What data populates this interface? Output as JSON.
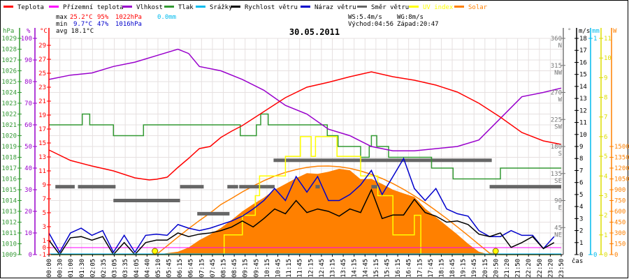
{
  "legend": [
    {
      "label": "Teplota",
      "color": "#ff0000"
    },
    {
      "label": "Přízemní teplota",
      "color": "#ff00ff"
    },
    {
      "label": "Vlhkost",
      "color": "#9900cc"
    },
    {
      "label": "Tlak",
      "color": "#339933"
    },
    {
      "label": "Srážky",
      "color": "#00bbee"
    },
    {
      "label": "Rychlost větru",
      "color": "#000000"
    },
    {
      "label": "Náraz větru",
      "color": "#0000cc"
    },
    {
      "label": "Směr větru",
      "color": "#666666"
    },
    {
      "label": "UV index",
      "color": "#ffff00"
    },
    {
      "label": "Solar",
      "color": "#ff8000"
    }
  ],
  "stats": {
    "max_label": "max",
    "max_temp": "25.2°C",
    "max_hum": "95%",
    "max_press": "1022hPa",
    "rain": "0.0mm",
    "min_label": "min",
    "min_temp": "9.7°C",
    "min_hum": "47%",
    "min_press": "1016hPa",
    "avg": "avg 18.1°C",
    "ws": "WS:5.4m/s",
    "wg": "WG:8m/s",
    "sunrise": "Východ:04:56",
    "sunset": "Západ:20:47"
  },
  "chart_data": {
    "type": "line",
    "title": "30.05.2011",
    "xlabel": "čas",
    "x_ticks": [
      "00:00",
      "00:30",
      "01:00",
      "01:30",
      "02:05",
      "02:35",
      "03:05",
      "03:35",
      "04:05",
      "04:40",
      "05:10",
      "05:45",
      "06:15",
      "06:45",
      "07:15",
      "07:45",
      "08:15",
      "08:45",
      "09:15",
      "09:45",
      "10:15",
      "10:45",
      "11:15",
      "11:45",
      "12:15",
      "12:45",
      "13:15",
      "13:45",
      "14:15",
      "14:45",
      "15:15",
      "15:45",
      "16:15",
      "16:45",
      "17:15",
      "17:45",
      "18:15",
      "18:45",
      "19:15",
      "19:45",
      "20:15",
      "20:50",
      "21:20",
      "21:50",
      "22:20",
      "22:50",
      "23:20",
      "23:50"
    ],
    "axes": {
      "pressure": {
        "unit": "hPa",
        "range": [
          1009,
          1029
        ],
        "ticks": [
          1009,
          1010,
          1011,
          1012,
          1013,
          1014,
          1015,
          1016,
          1017,
          1018,
          1019,
          1020,
          1021,
          1022,
          1023,
          1024,
          1025,
          1026,
          1027,
          1028,
          1029
        ]
      },
      "humidity": {
        "unit": "%",
        "range": [
          0,
          100
        ],
        "ticks": [
          0,
          10,
          20,
          30,
          40,
          50,
          60,
          70,
          80,
          90,
          100
        ]
      },
      "temperature": {
        "unit": "°C",
        "range": [
          -1,
          30
        ],
        "ticks": [
          -1,
          0,
          1,
          3,
          5,
          7,
          9,
          11,
          13,
          15,
          17,
          19,
          21,
          23,
          25,
          27,
          29
        ]
      },
      "direction": {
        "unit": "°",
        "range": [
          0,
          360
        ],
        "ticks": [
          {
            "v": 360,
            "l": "N"
          },
          {
            "v": 315,
            "l": "NW"
          },
          {
            "v": 270,
            "l": "W"
          },
          {
            "v": 225,
            "l": "SW"
          },
          {
            "v": 180,
            "l": "S"
          },
          {
            "v": 135,
            "l": "SE"
          },
          {
            "v": 90,
            "l": "E"
          },
          {
            "v": 45,
            "l": "NE"
          }
        ]
      },
      "wind": {
        "unit": "m/s",
        "range": [
          0,
          18
        ],
        "ticks": [
          0,
          1,
          2,
          3,
          4,
          5,
          6,
          7,
          8,
          9,
          10,
          11,
          12,
          13,
          14,
          15,
          16,
          17,
          18
        ]
      },
      "rain": {
        "unit": "mm",
        "range": [
          0,
          1
        ],
        "ticks": [
          0,
          1
        ]
      },
      "uv": {
        "unit": "",
        "range": [
          0,
          11
        ],
        "ticks": [
          0,
          1,
          2,
          3,
          4,
          5,
          6,
          7,
          8,
          9,
          10,
          11
        ]
      },
      "solar": {
        "unit": "W",
        "range": [
          0,
          1500
        ],
        "ticks": [
          0,
          150,
          300,
          450,
          600,
          750,
          900,
          1050,
          1200,
          1350,
          1500
        ]
      }
    },
    "series": {
      "temperature": {
        "name": "Teplota",
        "hours": [
          0,
          1,
          2,
          3,
          4,
          4.67,
          5,
          5.5,
          6,
          6.5,
          7,
          7.5,
          8,
          8.5,
          9,
          10,
          11,
          12,
          13,
          14,
          15,
          16,
          17,
          18,
          19,
          20,
          21,
          22,
          23,
          23.83
        ],
        "values": [
          14.0,
          12.5,
          11.7,
          11.0,
          10.0,
          9.7,
          9.8,
          10.1,
          11.5,
          12.8,
          14.2,
          14.5,
          15.8,
          16.7,
          17.5,
          19.5,
          21.5,
          23.0,
          23.7,
          24.5,
          25.2,
          24.5,
          24.0,
          23.3,
          22.3,
          20.7,
          18.7,
          16.5,
          15.3,
          14.8
        ]
      },
      "ground_temperature": {
        "name": "Přízemní teplota",
        "hours": [
          0,
          23.83
        ],
        "values": [
          0,
          0
        ]
      },
      "humidity": {
        "name": "Vlhkost",
        "hours": [
          0,
          1,
          2,
          3,
          4,
          5,
          6,
          6.5,
          7,
          8,
          9,
          10,
          11,
          12,
          13,
          14,
          15,
          16,
          17,
          18,
          19,
          20,
          21,
          22,
          23,
          23.83
        ],
        "values": [
          81,
          83,
          84,
          87,
          89,
          92,
          95,
          93,
          87,
          85,
          81,
          76,
          69,
          65,
          58,
          55,
          50,
          48,
          48,
          49,
          50,
          53,
          63,
          73,
          75,
          77
        ]
      },
      "pressure": {
        "name": "Tlak",
        "steps": [
          [
            0,
            1021
          ],
          [
            1.55,
            1022
          ],
          [
            1.9,
            1021
          ],
          [
            3.0,
            1020
          ],
          [
            4.4,
            1021
          ],
          [
            8.9,
            1020
          ],
          [
            9.65,
            1021
          ],
          [
            9.85,
            1022
          ],
          [
            10.2,
            1021
          ],
          [
            12.95,
            1020
          ],
          [
            13.45,
            1019
          ],
          [
            14.5,
            1018
          ],
          [
            14.9,
            1019
          ],
          [
            15.0,
            1020
          ],
          [
            15.25,
            1019
          ],
          [
            15.8,
            1018
          ],
          [
            17.8,
            1017
          ],
          [
            18.8,
            1016
          ],
          [
            21.0,
            1017
          ],
          [
            23.83,
            1017
          ]
        ]
      },
      "rain": {
        "name": "Srážky",
        "hours": [
          0,
          23.83
        ],
        "values": [
          0,
          0
        ]
      },
      "wind_speed": {
        "name": "Rychlost větru",
        "step_hours": 0.5,
        "values": [
          1.2,
          0,
          1.4,
          1.5,
          1.2,
          1.5,
          0,
          1.0,
          0,
          1.0,
          1.2,
          1.2,
          1.8,
          1.5,
          1.7,
          1.8,
          2.0,
          2.3,
          2.8,
          2.3,
          3.0,
          3.8,
          3.4,
          4.5,
          3.5,
          3.8,
          3.6,
          3.2,
          3.8,
          3.5,
          5.4,
          3.0,
          3.3,
          3.3,
          4.6,
          3.5,
          3.2,
          2.7,
          2.8,
          2.5,
          1.7,
          1.5,
          1.8,
          0.6,
          1.0,
          1.5,
          0.5,
          1.0
        ]
      },
      "wind_gust": {
        "name": "Náraz větru",
        "step_hours": 0.5,
        "values": [
          1.8,
          0.2,
          1.8,
          2.2,
          1.6,
          2.0,
          0.2,
          1.6,
          0.2,
          1.6,
          1.7,
          1.6,
          2.5,
          2.2,
          2.0,
          2.2,
          2.5,
          2.8,
          3.2,
          3.8,
          4.5,
          5.5,
          4.5,
          6.5,
          5.2,
          6.5,
          4.5,
          4.5,
          5.0,
          5.8,
          7.0,
          5.0,
          6.5,
          8.0,
          5.5,
          4.5,
          5.5,
          3.8,
          3.4,
          3.2,
          2.0,
          1.5,
          1.5,
          2.0,
          1.6,
          1.6,
          0.5,
          1.5
        ]
      },
      "wind_direction": {
        "name": "Směr větru",
        "segments": [
          [
            0.3,
            1.2,
            113
          ],
          [
            1.35,
            3.1,
            113
          ],
          [
            3.0,
            6.1,
            90
          ],
          [
            6.1,
            7.2,
            113
          ],
          [
            6.9,
            8.4,
            68
          ],
          [
            8.3,
            8.8,
            113
          ],
          [
            8.85,
            10.5,
            113
          ],
          [
            10.45,
            20.6,
            157
          ],
          [
            12.4,
            12.6,
            113
          ],
          [
            15.0,
            15.3,
            113
          ],
          [
            20.5,
            23.83,
            113
          ]
        ]
      },
      "uv": {
        "name": "UV index",
        "steps": [
          [
            0,
            0
          ],
          [
            8.15,
            1
          ],
          [
            9.0,
            2
          ],
          [
            9.6,
            3
          ],
          [
            9.8,
            4
          ],
          [
            11.0,
            5
          ],
          [
            11.7,
            6
          ],
          [
            12.2,
            5
          ],
          [
            12.4,
            6
          ],
          [
            13.4,
            5
          ],
          [
            14.5,
            4
          ],
          [
            15.3,
            3
          ],
          [
            16.0,
            1
          ],
          [
            17.0,
            2
          ],
          [
            17.3,
            0
          ],
          [
            23.83,
            0
          ]
        ]
      },
      "solar": {
        "name": "Solar",
        "step_hours": 0.5,
        "values": [
          0,
          0,
          0,
          0,
          0,
          0,
          0,
          0,
          0,
          0,
          0,
          20,
          40,
          100,
          200,
          280,
          370,
          480,
          600,
          700,
          790,
          900,
          980,
          1060,
          1130,
          1120,
          1150,
          1190,
          1170,
          1045,
          1050,
          980,
          900,
          850,
          800,
          640,
          520,
          400,
          280,
          150,
          40,
          0,
          0,
          0,
          0,
          0,
          0,
          0
        ]
      },
      "solar_theoretical": {
        "name": "Solar",
        "step_hours": 0.5,
        "values": [
          0,
          0,
          0,
          0,
          0,
          0,
          0,
          0,
          0,
          0,
          0,
          122,
          243,
          360,
          472,
          577,
          695,
          780,
          870,
          950,
          1025,
          1090,
          1140,
          1180,
          1210,
          1226,
          1229,
          1219,
          1196,
          1160,
          1113,
          1055,
          985,
          905,
          815,
          717,
          611,
          500,
          384,
          264,
          141,
          19,
          0,
          0,
          0,
          0,
          0,
          0
        ]
      }
    },
    "markers": {
      "sunrise_hour": 4.93,
      "sunset_hour": 20.78
    },
    "grid": true
  }
}
